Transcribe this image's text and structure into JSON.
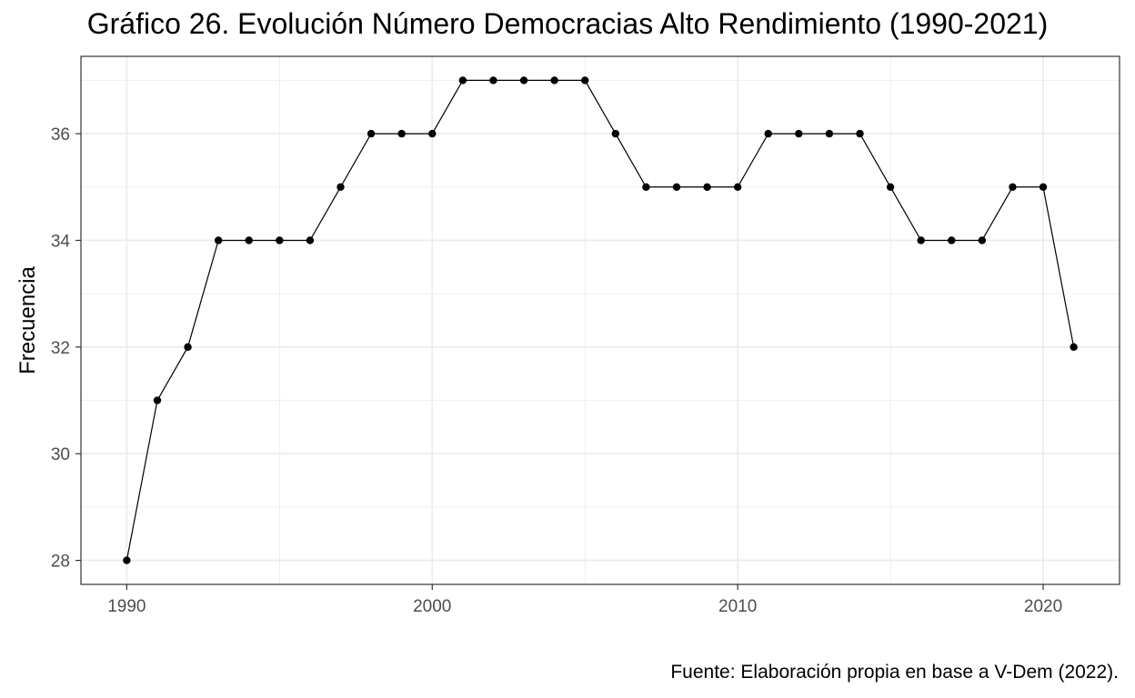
{
  "chart_data": {
    "type": "line",
    "title": "Gráfico 26. Evolución Número Democracias Alto Rendimiento (1990-2021)",
    "xlabel": "",
    "ylabel": "Frecuencia",
    "caption": "Fuente: Elaboración propia en base a V-Dem (2022).",
    "xlim": [
      1988.5,
      2022.5
    ],
    "ylim": [
      27.55,
      37.45
    ],
    "x_ticks": [
      1990,
      2000,
      2010,
      2020
    ],
    "y_ticks": [
      28,
      30,
      32,
      34,
      36
    ],
    "grid": true,
    "legend": "none",
    "series": [
      {
        "x": [
          1990,
          1991,
          1992,
          1993,
          1994,
          1995,
          1996,
          1997,
          1998,
          1999,
          2000,
          2001,
          2002,
          2003,
          2004,
          2005,
          2006,
          2007,
          2008,
          2009,
          2010,
          2011,
          2012,
          2013,
          2014,
          2015,
          2016,
          2017,
          2018,
          2019,
          2020,
          2021
        ],
        "y": [
          28,
          31,
          32,
          34,
          34,
          34,
          34,
          35,
          36,
          36,
          36,
          37,
          37,
          37,
          37,
          37,
          36,
          35,
          35,
          35,
          35,
          36,
          36,
          36,
          36,
          35,
          34,
          34,
          34,
          35,
          35,
          32
        ]
      }
    ],
    "colors": {
      "line": "#000000",
      "points": "#000000",
      "grid": "#ebebeb",
      "panel_border": "#333333"
    }
  }
}
